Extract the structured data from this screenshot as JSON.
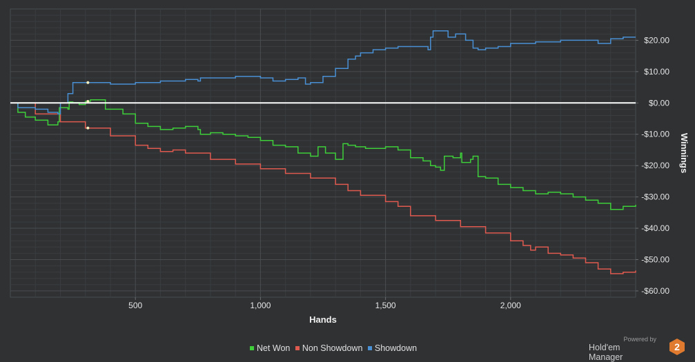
{
  "chart_data": {
    "type": "line",
    "xlabel": "Hands",
    "ylabel": "Winnings",
    "xlim": [
      0,
      2500
    ],
    "ylim": [
      -62,
      30
    ],
    "x_ticks": [
      500,
      1000,
      1500,
      2000
    ],
    "x_tick_labels": [
      "500",
      "1,000",
      "1,500",
      "2,000"
    ],
    "y_ticks": [
      20,
      10,
      0,
      -10,
      -20,
      -30,
      -40,
      -50,
      -60
    ],
    "y_tick_labels": [
      "$20.00",
      "$10.00",
      "$0.00",
      "-$10.00",
      "-$20.00",
      "-$30.00",
      "-$40.00",
      "-$50.00",
      "-$60.00"
    ],
    "grid": true,
    "legend_position": "bottom",
    "series": [
      {
        "name": "Net Won",
        "color": "#3ecf3a",
        "x": [
          0,
          30,
          60,
          100,
          150,
          190,
          196,
          230,
          235,
          250,
          275,
          300,
          320,
          380,
          450,
          500,
          550,
          600,
          650,
          700,
          750,
          760,
          800,
          850,
          900,
          950,
          1000,
          1050,
          1100,
          1150,
          1200,
          1230,
          1260,
          1300,
          1330,
          1350,
          1380,
          1420,
          1500,
          1550,
          1600,
          1650,
          1680,
          1700,
          1720,
          1735,
          1770,
          1800,
          1805,
          1840,
          1850,
          1870,
          1900,
          1950,
          2000,
          2050,
          2100,
          2150,
          2200,
          2250,
          2300,
          2350,
          2400,
          2450,
          2500
        ],
        "y": [
          0,
          -3,
          -4.5,
          -5.5,
          -7,
          -6,
          -1.5,
          -2,
          0.3,
          0.1,
          -0.5,
          0.5,
          1,
          -2,
          -3.5,
          -6.5,
          -7.5,
          -8.5,
          -8,
          -7.5,
          -8.5,
          -10,
          -9.5,
          -10,
          -10.5,
          -11,
          -12,
          -13.5,
          -14,
          -16,
          -17,
          -14,
          -16,
          -18,
          -13,
          -13.5,
          -14,
          -14.5,
          -14,
          -15,
          -17.5,
          -18.5,
          -20,
          -20.5,
          -21.5,
          -17,
          -17.5,
          -16,
          -19,
          -18,
          -17,
          -23.5,
          -24,
          -26,
          -27,
          -28,
          -29,
          -28.5,
          -29,
          -30,
          -31,
          -32,
          -34,
          -33,
          -32.5
        ]
      },
      {
        "name": "Non Showdown",
        "color": "#e05a50",
        "x": [
          0,
          100,
          200,
          300,
          400,
          500,
          550,
          600,
          650,
          700,
          800,
          900,
          1000,
          1100,
          1200,
          1300,
          1350,
          1400,
          1500,
          1550,
          1600,
          1700,
          1800,
          1900,
          2000,
          2050,
          2080,
          2100,
          2150,
          2200,
          2250,
          2300,
          2350,
          2400,
          2450,
          2500
        ],
        "y": [
          0,
          -3.5,
          -6,
          -8,
          -10.5,
          -13.5,
          -14.5,
          -15.5,
          -15,
          -16,
          -18,
          -19.5,
          -21,
          -22.5,
          -24,
          -26,
          -28,
          -29.5,
          -31.5,
          -33,
          -36,
          -37.5,
          -39.5,
          -41.5,
          -44,
          -45.5,
          -47,
          -46,
          -48,
          -48.5,
          -49.5,
          -51,
          -53,
          -54.5,
          -54,
          -53.5
        ]
      },
      {
        "name": "Showdown",
        "color": "#4a90d4",
        "x": [
          0,
          30,
          100,
          150,
          190,
          200,
          230,
          250,
          300,
          400,
          500,
          550,
          600,
          650,
          700,
          750,
          760,
          800,
          900,
          1000,
          1050,
          1100,
          1150,
          1180,
          1200,
          1250,
          1300,
          1350,
          1380,
          1400,
          1450,
          1500,
          1550,
          1600,
          1650,
          1670,
          1680,
          1690,
          1740,
          1750,
          1780,
          1800,
          1820,
          1850,
          1870,
          1900,
          1950,
          2000,
          2050,
          2100,
          2150,
          2200,
          2250,
          2300,
          2350,
          2400,
          2450,
          2500
        ],
        "y": [
          0,
          -1.5,
          -2,
          -3,
          -3.5,
          0,
          3,
          6.5,
          6.5,
          6,
          6.5,
          6.5,
          7,
          7,
          7.5,
          7,
          8,
          8,
          8.5,
          8,
          7,
          7.5,
          8,
          6,
          6.5,
          8.5,
          11,
          14,
          15,
          16,
          17,
          17.5,
          18,
          18,
          18,
          17,
          21,
          23,
          23,
          21,
          22,
          22,
          20,
          17.5,
          17,
          17.5,
          18,
          19,
          19,
          19.5,
          19.5,
          20,
          20,
          20,
          19,
          20.5,
          21,
          21
        ]
      }
    ]
  },
  "branding": {
    "powered_by": "Powered by",
    "product": "Hold'em Manager",
    "logo_number": "2",
    "logo_color": "#e07a2e"
  }
}
